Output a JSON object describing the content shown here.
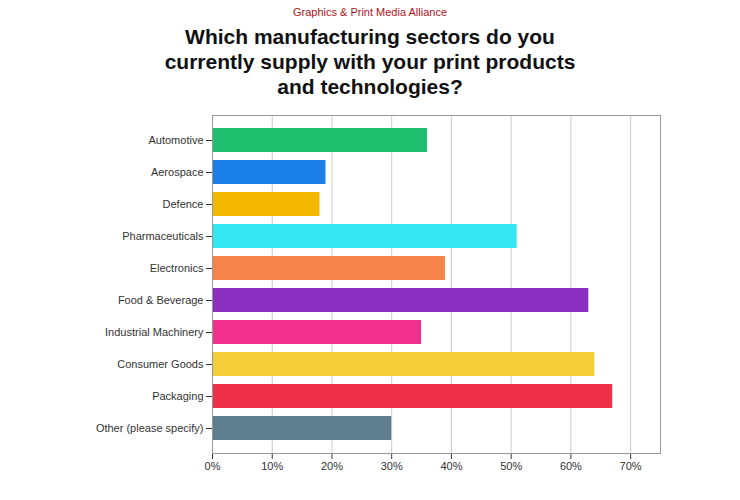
{
  "chart_data": {
    "type": "bar",
    "orientation": "horizontal",
    "subtitle": "Graphics & Print Media Alliance",
    "title": "Which manufacturing sectors do you currently supply with your print products and technologies?",
    "categories": [
      "Automotive",
      "Aerospace",
      "Defence",
      "Pharmaceuticals",
      "Electronics",
      "Food & Beverage",
      "Industrial Machinery",
      "Consumer Goods",
      "Packaging",
      "Other (please specify)"
    ],
    "values": [
      36,
      19,
      18,
      51,
      39,
      63,
      35,
      64,
      67,
      30
    ],
    "colors": [
      "#1fbf6f",
      "#1a7fe8",
      "#f5b800",
      "#33e6f0",
      "#f5834a",
      "#8a2fc0",
      "#f0308a",
      "#f5cf3a",
      "#f0304a",
      "#5f7f8f"
    ],
    "xlim": [
      0,
      75
    ],
    "xticks": [
      {
        "value": 0,
        "label": "0%"
      },
      {
        "value": 10,
        "label": "10%"
      },
      {
        "value": 20,
        "label": "20%"
      },
      {
        "value": 30,
        "label": "30%"
      },
      {
        "value": 40,
        "label": "40%"
      },
      {
        "value": 50,
        "label": "50%"
      },
      {
        "value": 60,
        "label": "60%"
      },
      {
        "value": 70,
        "label": "70%"
      }
    ],
    "grid": true
  }
}
